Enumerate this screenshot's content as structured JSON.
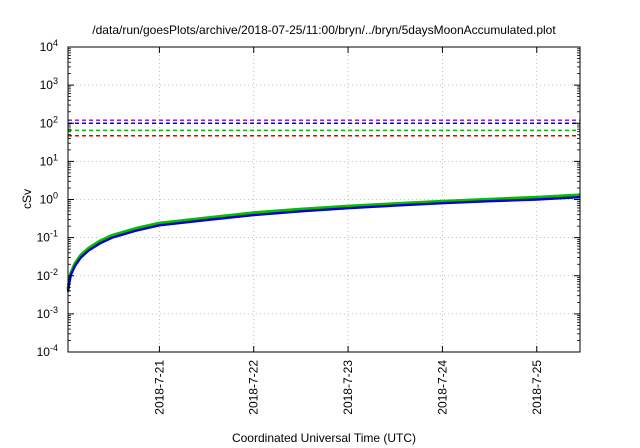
{
  "chart_data": {
    "type": "line",
    "title": "/data/run/goesPlots/archive/2018-07-25/11:00/bryn/../bryn/5daysMoonAccumulated.plot",
    "xlabel": "Coordinated Universal Time (UTC)",
    "ylabel": "cSv",
    "yscale": "log",
    "ylim": [
      0.0001,
      10000
    ],
    "xlim": [
      "2018-07-20T00:45",
      "2018-07-25T11:00"
    ],
    "grid": true,
    "y_ticks": [
      {
        "value": 0.0001,
        "base": "10",
        "exp": "-4"
      },
      {
        "value": 0.001,
        "base": "10",
        "exp": "-3"
      },
      {
        "value": 0.01,
        "base": "10",
        "exp": "-2"
      },
      {
        "value": 0.1,
        "base": "10",
        "exp": "-1"
      },
      {
        "value": 1,
        "base": "10",
        "exp": "0"
      },
      {
        "value": 10,
        "base": "10",
        "exp": "1"
      },
      {
        "value": 100,
        "base": "10",
        "exp": "2"
      },
      {
        "value": 1000,
        "base": "10",
        "exp": "3"
      },
      {
        "value": 10000,
        "base": "10",
        "exp": "4"
      }
    ],
    "x_ticks": [
      {
        "date": "2018-07-21T00:00",
        "label": "2018-7-21"
      },
      {
        "date": "2018-07-22T00:00",
        "label": "2018-7-22"
      },
      {
        "date": "2018-07-23T00:00",
        "label": "2018-7-23"
      },
      {
        "date": "2018-07-24T00:00",
        "label": "2018-7-24"
      },
      {
        "date": "2018-07-25T00:00",
        "label": "2018-7-25"
      }
    ],
    "thresholds": [
      {
        "value": 120,
        "color": "#9400d3"
      },
      {
        "value": 100,
        "color": "#0000ff"
      },
      {
        "value": 65,
        "color": "#00c000"
      },
      {
        "value": 47,
        "color": "#e00000"
      }
    ],
    "series": [
      {
        "color": "#00c000",
        "x": [
          "2018-07-20T00:45",
          "2018-07-20T01:00",
          "2018-07-20T01:30",
          "2018-07-20T02:30",
          "2018-07-20T04:00",
          "2018-07-20T06:00",
          "2018-07-20T09:00",
          "2018-07-20T12:00",
          "2018-07-20T18:00",
          "2018-07-21T00:00",
          "2018-07-21T12:00",
          "2018-07-22T00:00",
          "2018-07-22T12:00",
          "2018-07-23T00:00",
          "2018-07-23T12:00",
          "2018-07-24T00:00",
          "2018-07-24T12:00",
          "2018-07-25T00:00",
          "2018-07-25T11:00"
        ],
        "y": [
          0.0045,
          0.007,
          0.012,
          0.021,
          0.035,
          0.053,
          0.083,
          0.115,
          0.175,
          0.24,
          0.33,
          0.45,
          0.56,
          0.67,
          0.78,
          0.9,
          1.02,
          1.15,
          1.32
        ]
      },
      {
        "color": "#0000cc",
        "x": [
          "2018-07-20T00:45",
          "2018-07-20T01:00",
          "2018-07-20T01:30",
          "2018-07-20T02:30",
          "2018-07-20T04:00",
          "2018-07-20T06:00",
          "2018-07-20T09:00",
          "2018-07-20T12:00",
          "2018-07-20T18:00",
          "2018-07-21T00:00",
          "2018-07-21T12:00",
          "2018-07-22T00:00",
          "2018-07-22T12:00",
          "2018-07-23T00:00",
          "2018-07-23T12:00",
          "2018-07-24T00:00",
          "2018-07-24T12:00",
          "2018-07-25T00:00",
          "2018-07-25T11:00"
        ],
        "y": [
          0.0038,
          0.006,
          0.0105,
          0.018,
          0.03,
          0.046,
          0.072,
          0.1,
          0.152,
          0.21,
          0.29,
          0.39,
          0.49,
          0.59,
          0.69,
          0.8,
          0.9,
          1.0,
          1.15
        ]
      }
    ]
  }
}
